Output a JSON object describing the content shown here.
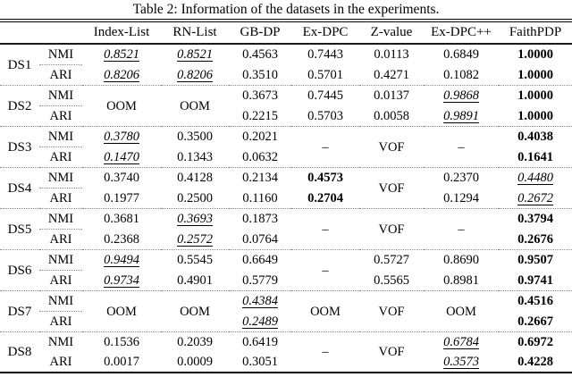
{
  "title": "Table 2: Information of the datasets in the experiments.",
  "header": {
    "columns": [
      "Index-List",
      "RN-List",
      "GB-DP",
      "Ex-DPC",
      "Z-value",
      "Ex-DPC++",
      "FaithPDP"
    ]
  },
  "metrics": [
    "NMI",
    "ARI"
  ],
  "datasets": [
    {
      "name": "DS1",
      "cols": [
        {
          "nmi": {
            "v": "0.8521",
            "s": "iu"
          },
          "ari": {
            "v": "0.8206",
            "s": "iu"
          }
        },
        {
          "nmi": {
            "v": "0.8521",
            "s": "iu"
          },
          "ari": {
            "v": "0.8206",
            "s": "iu"
          }
        },
        {
          "nmi": {
            "v": "0.4563"
          },
          "ari": {
            "v": "0.3510"
          }
        },
        {
          "nmi": {
            "v": "0.7443"
          },
          "ari": {
            "v": "0.5701"
          }
        },
        {
          "nmi": {
            "v": "0.0113"
          },
          "ari": {
            "v": "0.4271"
          }
        },
        {
          "nmi": {
            "v": "0.6849"
          },
          "ari": {
            "v": "0.1082"
          }
        },
        {
          "nmi": {
            "v": "1.0000",
            "s": "b"
          },
          "ari": {
            "v": "1.0000",
            "s": "b"
          }
        }
      ]
    },
    {
      "name": "DS2",
      "cols": [
        {
          "span": {
            "v": "OOM"
          }
        },
        {
          "span": {
            "v": "OOM"
          }
        },
        {
          "nmi": {
            "v": "0.3673"
          },
          "ari": {
            "v": "0.2215"
          }
        },
        {
          "nmi": {
            "v": "0.7445"
          },
          "ari": {
            "v": "0.5703"
          }
        },
        {
          "nmi": {
            "v": "0.0137"
          },
          "ari": {
            "v": "0.0058"
          }
        },
        {
          "nmi": {
            "v": "0.9868",
            "s": "iu"
          },
          "ari": {
            "v": "0.9891",
            "s": "iu"
          }
        },
        {
          "nmi": {
            "v": "1.0000",
            "s": "b"
          },
          "ari": {
            "v": "1.0000",
            "s": "b"
          }
        }
      ]
    },
    {
      "name": "DS3",
      "cols": [
        {
          "nmi": {
            "v": "0.3780",
            "s": "iu"
          },
          "ari": {
            "v": "0.1470",
            "s": "iu"
          }
        },
        {
          "nmi": {
            "v": "0.3500"
          },
          "ari": {
            "v": "0.1343"
          }
        },
        {
          "nmi": {
            "v": "0.2021"
          },
          "ari": {
            "v": "0.0632"
          }
        },
        {
          "span": {
            "v": "–"
          }
        },
        {
          "span": {
            "v": "VOF"
          }
        },
        {
          "span": {
            "v": "–"
          }
        },
        {
          "nmi": {
            "v": "0.4038",
            "s": "b"
          },
          "ari": {
            "v": "0.1641",
            "s": "b"
          }
        }
      ]
    },
    {
      "name": "DS4",
      "cols": [
        {
          "nmi": {
            "v": "0.3740"
          },
          "ari": {
            "v": "0.1977"
          }
        },
        {
          "nmi": {
            "v": "0.4128"
          },
          "ari": {
            "v": "0.2500"
          }
        },
        {
          "nmi": {
            "v": "0.2134"
          },
          "ari": {
            "v": "0.1160"
          }
        },
        {
          "nmi": {
            "v": "0.4573",
            "s": "b"
          },
          "ari": {
            "v": "0.2704",
            "s": "b"
          }
        },
        {
          "span": {
            "v": "VOF"
          }
        },
        {
          "nmi": {
            "v": "0.2370"
          },
          "ari": {
            "v": "0.1294"
          }
        },
        {
          "nmi": {
            "v": "0.4480",
            "s": "iu"
          },
          "ari": {
            "v": "0.2672",
            "s": "iu"
          }
        }
      ]
    },
    {
      "name": "DS5",
      "cols": [
        {
          "nmi": {
            "v": "0.3681"
          },
          "ari": {
            "v": "0.2368"
          }
        },
        {
          "nmi": {
            "v": "0.3693",
            "s": "iu"
          },
          "ari": {
            "v": "0.2572",
            "s": "iu"
          }
        },
        {
          "nmi": {
            "v": "0.1873"
          },
          "ari": {
            "v": "0.0764"
          }
        },
        {
          "span": {
            "v": "–"
          }
        },
        {
          "span": {
            "v": "VOF"
          }
        },
        {
          "span": {
            "v": "–"
          }
        },
        {
          "nmi": {
            "v": "0.3794",
            "s": "b"
          },
          "ari": {
            "v": "0.2676",
            "s": "b"
          }
        }
      ]
    },
    {
      "name": "DS6",
      "cols": [
        {
          "nmi": {
            "v": "0.9494",
            "s": "iu"
          },
          "ari": {
            "v": "0.9734",
            "s": "iu"
          }
        },
        {
          "nmi": {
            "v": "0.5545"
          },
          "ari": {
            "v": "0.4901"
          }
        },
        {
          "nmi": {
            "v": "0.6649"
          },
          "ari": {
            "v": "0.5779"
          }
        },
        {
          "span": {
            "v": "–"
          }
        },
        {
          "nmi": {
            "v": "0.5727"
          },
          "ari": {
            "v": "0.5565"
          }
        },
        {
          "nmi": {
            "v": "0.8690"
          },
          "ari": {
            "v": "0.8981"
          }
        },
        {
          "nmi": {
            "v": "0.9507",
            "s": "b"
          },
          "ari": {
            "v": "0.9741",
            "s": "b"
          }
        }
      ]
    },
    {
      "name": "DS7",
      "cols": [
        {
          "span": {
            "v": "OOM"
          }
        },
        {
          "span": {
            "v": "OOM"
          }
        },
        {
          "nmi": {
            "v": "0.4384",
            "s": "iu"
          },
          "ari": {
            "v": "0.2489",
            "s": "iu"
          }
        },
        {
          "span": {
            "v": "OOM"
          }
        },
        {
          "span": {
            "v": "VOF"
          }
        },
        {
          "span": {
            "v": "OOM"
          }
        },
        {
          "nmi": {
            "v": "0.4516",
            "s": "b"
          },
          "ari": {
            "v": "0.2667",
            "s": "b"
          }
        }
      ]
    },
    {
      "name": "DS8",
      "cols": [
        {
          "nmi": {
            "v": "0.1536"
          },
          "ari": {
            "v": "0.0017"
          }
        },
        {
          "nmi": {
            "v": "0.2039"
          },
          "ari": {
            "v": "0.0009"
          }
        },
        {
          "nmi": {
            "v": "0.6419"
          },
          "ari": {
            "v": "0.3051"
          }
        },
        {
          "span": {
            "v": "–"
          }
        },
        {
          "span": {
            "v": "VOF"
          }
        },
        {
          "nmi": {
            "v": "0.6784",
            "s": "iu"
          },
          "ari": {
            "v": "0.3573",
            "s": "iu"
          }
        },
        {
          "nmi": {
            "v": "0.6972",
            "s": "b"
          },
          "ari": {
            "v": "0.4228",
            "s": "b"
          }
        }
      ]
    }
  ]
}
